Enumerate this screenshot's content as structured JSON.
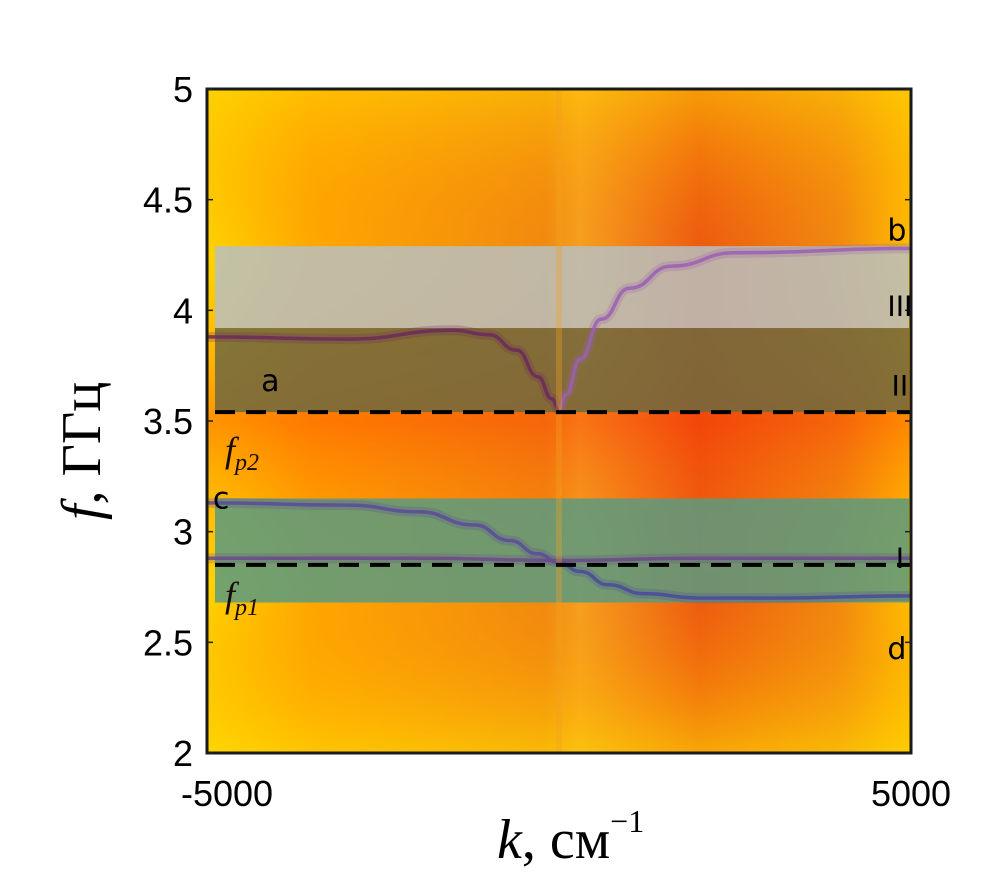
{
  "chart_data": {
    "type": "heatmap",
    "title": "",
    "xlabel_var": "k",
    "xlabel_unit": "см",
    "xlabel_exp": "−1",
    "ylabel_var": "f",
    "ylabel_unit": "ГГц",
    "xlim": [
      -5000,
      5000
    ],
    "ylim": [
      2,
      5
    ],
    "x_ticks": [
      -5000,
      5000
    ],
    "x_tick_labels": [
      "-5000",
      "5000"
    ],
    "y_ticks": [
      2,
      2.5,
      3,
      3.5,
      4,
      4.5,
      5
    ],
    "y_tick_labels": [
      "2",
      "2.5",
      "3",
      "3.5",
      "4",
      "4.5",
      "5"
    ],
    "colormap": [
      "#ffe000",
      "#ffb000",
      "#f07a10",
      "#e83010"
    ],
    "bands": [
      {
        "name": "III",
        "f_min": 3.92,
        "f_max": 4.29,
        "color": "#b8c0c0"
      },
      {
        "name": "II",
        "f_min": 3.54,
        "f_max": 3.92,
        "color": "#6e6840"
      },
      {
        "name": "I",
        "f_min": 2.68,
        "f_max": 3.15,
        "color": "#5a9a80"
      }
    ],
    "reference_lines": [
      {
        "name": "f_p2",
        "label_main": "f",
        "label_sub": "p2",
        "f": 3.54,
        "style": "dashed"
      },
      {
        "name": "f_p1",
        "label_main": "f",
        "label_sub": "p1",
        "f": 2.85,
        "style": "dashed"
      }
    ],
    "branch_labels": [
      {
        "text": "a",
        "k": -4100,
        "f": 3.68
      },
      {
        "text": "b",
        "k": 4800,
        "f": 4.36
      },
      {
        "text": "c",
        "k": -4800,
        "f": 3.15
      },
      {
        "text": "d",
        "k": 4800,
        "f": 2.47
      }
    ],
    "region_labels": [
      {
        "text": "III",
        "k": 4700,
        "f": 4.02
      },
      {
        "text": "II",
        "k": 4700,
        "f": 3.66
      },
      {
        "text": "I",
        "k": 4700,
        "f": 2.88
      }
    ],
    "dispersion_curves": [
      {
        "name": "a",
        "color": "#6a2a5a",
        "points": [
          [
            -5000,
            3.88
          ],
          [
            -3000,
            3.87
          ],
          [
            -1500,
            3.91
          ],
          [
            -1000,
            3.89
          ],
          [
            -600,
            3.82
          ],
          [
            -300,
            3.7
          ],
          [
            -100,
            3.6
          ],
          [
            0,
            3.55
          ]
        ]
      },
      {
        "name": "b",
        "color": "#9a60b0",
        "points": [
          [
            0,
            3.55
          ],
          [
            100,
            3.62
          ],
          [
            300,
            3.78
          ],
          [
            600,
            3.96
          ],
          [
            1000,
            4.1
          ],
          [
            1600,
            4.2
          ],
          [
            2500,
            4.26
          ],
          [
            5000,
            4.28
          ]
        ]
      },
      {
        "name": "c",
        "color": "#5a4a9a",
        "points": [
          [
            -5000,
            3.13
          ],
          [
            -3000,
            3.12
          ],
          [
            -2000,
            3.09
          ],
          [
            -1200,
            3.03
          ],
          [
            -700,
            2.96
          ],
          [
            -300,
            2.9
          ],
          [
            0,
            2.86
          ]
        ]
      },
      {
        "name": "d",
        "color": "#4a4a9a",
        "points": [
          [
            0,
            2.86
          ],
          [
            300,
            2.82
          ],
          [
            700,
            2.76
          ],
          [
            1200,
            2.72
          ],
          [
            2000,
            2.7
          ],
          [
            3000,
            2.7
          ],
          [
            5000,
            2.71
          ]
        ]
      },
      {
        "name": "fp1-branch",
        "color": "#6a4a8a",
        "points": [
          [
            -5000,
            2.88
          ],
          [
            -2000,
            2.88
          ],
          [
            0,
            2.87
          ],
          [
            2000,
            2.88
          ],
          [
            5000,
            2.88
          ]
        ]
      }
    ]
  }
}
